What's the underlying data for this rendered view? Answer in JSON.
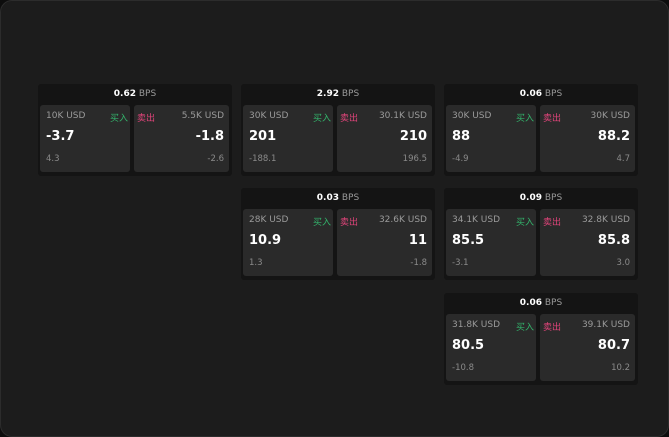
{
  "colors": {
    "buy": "#33b36b",
    "sell": "#e0447a",
    "background": "#1c1c1c",
    "panel": "#2a2a2a"
  },
  "labels": {
    "buy": "买入",
    "sell": "卖出",
    "unit": "BPS"
  },
  "cards": [
    {
      "spread": "0.62",
      "bid": {
        "size": "10K USD",
        "price": "-3.7",
        "change": "4.3"
      },
      "ask": {
        "size": "5.5K USD",
        "price": "-1.8",
        "change": "-2.6"
      }
    },
    {
      "spread": "2.92",
      "bid": {
        "size": "30K USD",
        "price": "201",
        "change": "-188.1"
      },
      "ask": {
        "size": "30.1K USD",
        "price": "210",
        "change": "196.5"
      }
    },
    {
      "spread": "0.06",
      "bid": {
        "size": "30K USD",
        "price": "88",
        "change": "-4.9"
      },
      "ask": {
        "size": "30K USD",
        "price": "88.2",
        "change": "4.7"
      }
    },
    {
      "spread": "0.03",
      "bid": {
        "size": "28K USD",
        "price": "10.9",
        "change": "1.3"
      },
      "ask": {
        "size": "32.6K USD",
        "price": "11",
        "change": "-1.8"
      }
    },
    {
      "spread": "0.09",
      "bid": {
        "size": "34.1K USD",
        "price": "85.5",
        "change": "-3.1"
      },
      "ask": {
        "size": "32.8K USD",
        "price": "85.8",
        "change": "3.0"
      }
    },
    {
      "spread": "0.06",
      "bid": {
        "size": "31.8K USD",
        "price": "80.5",
        "change": "-10.8"
      },
      "ask": {
        "size": "39.1K USD",
        "price": "80.7",
        "change": "10.2"
      }
    }
  ]
}
